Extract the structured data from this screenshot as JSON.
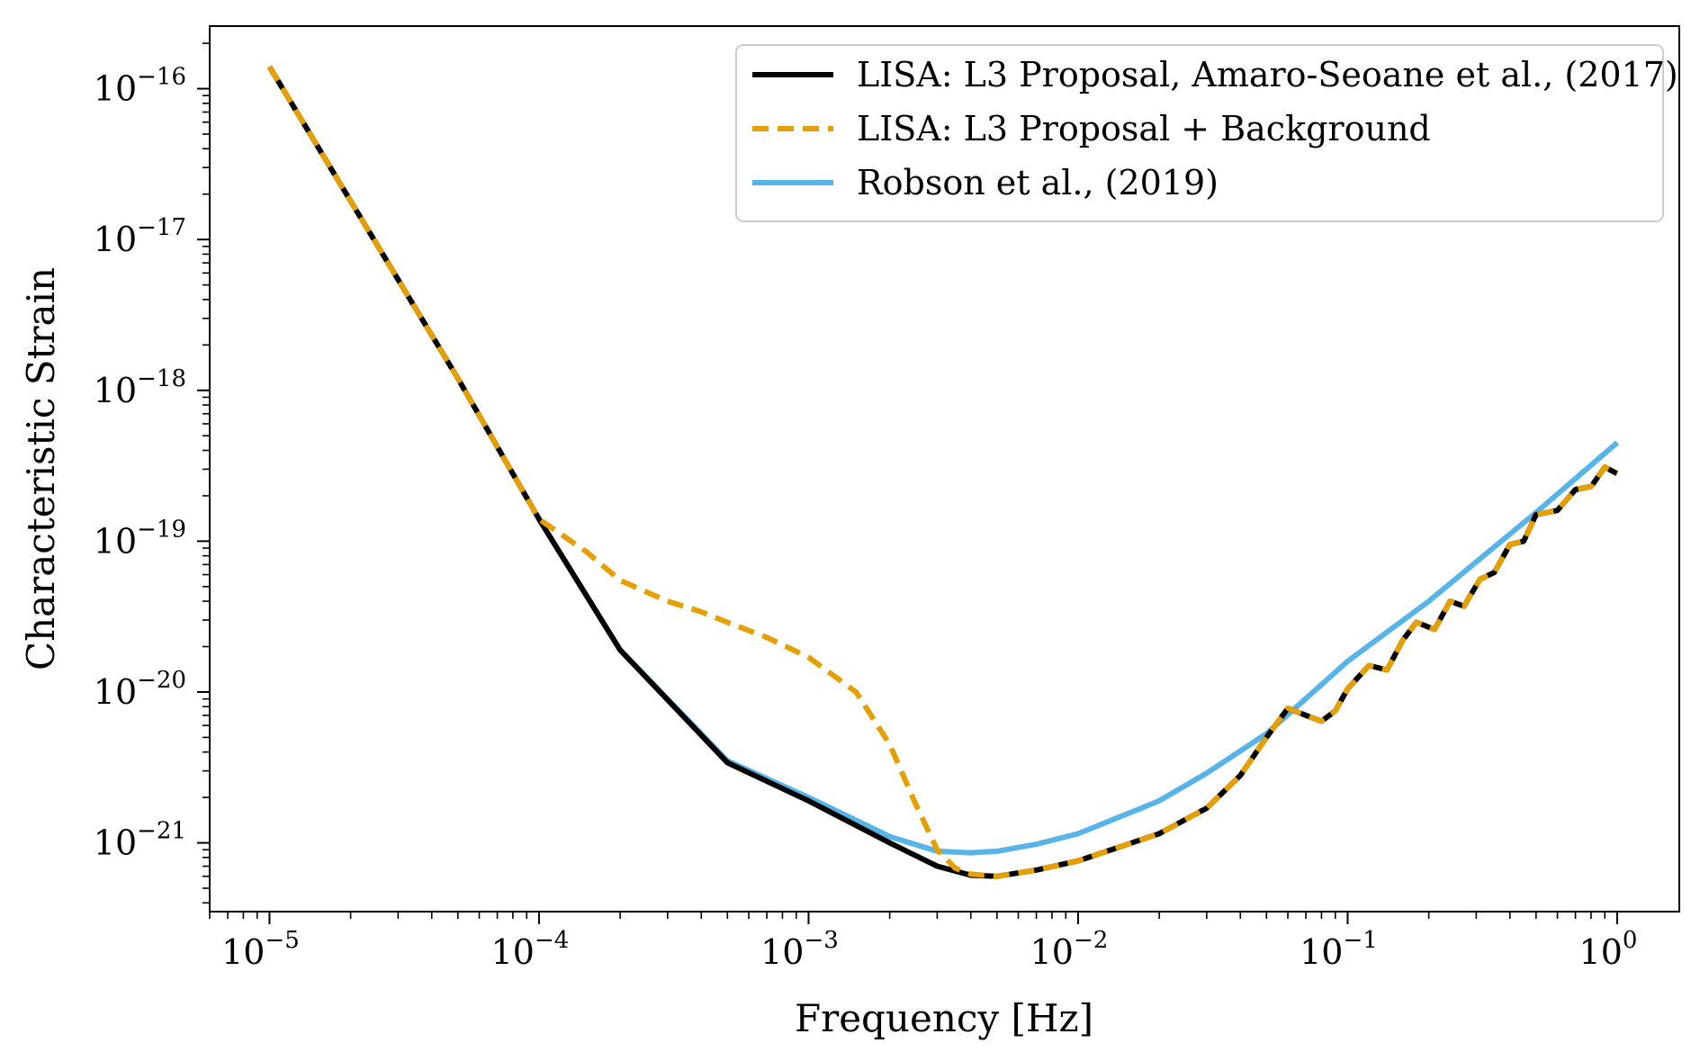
{
  "chart_data": {
    "type": "line",
    "title": "",
    "xlabel": "Frequency [Hz]",
    "ylabel": "Characteristic Strain",
    "xscale": "log",
    "yscale": "log",
    "xlim": [
      6e-06,
      1.7
    ],
    "ylim": [
      3.5e-22,
      2.6e-16
    ],
    "grid": false,
    "legend_position": "top-right",
    "x_ticks": [
      {
        "value": 1e-05,
        "base": "10",
        "exp": "−5"
      },
      {
        "value": 0.0001,
        "base": "10",
        "exp": "−4"
      },
      {
        "value": 0.001,
        "base": "10",
        "exp": "−3"
      },
      {
        "value": 0.01,
        "base": "10",
        "exp": "−2"
      },
      {
        "value": 0.1,
        "base": "10",
        "exp": "−1"
      },
      {
        "value": 1,
        "base": "10",
        "exp": "0"
      }
    ],
    "y_ticks": [
      {
        "value": 1e-16,
        "base": "10",
        "exp": "−16"
      },
      {
        "value": 1e-17,
        "base": "10",
        "exp": "−17"
      },
      {
        "value": 1e-18,
        "base": "10",
        "exp": "−18"
      },
      {
        "value": 1e-19,
        "base": "10",
        "exp": "−19"
      },
      {
        "value": 1e-20,
        "base": "10",
        "exp": "−20"
      },
      {
        "value": 1e-21,
        "base": "10",
        "exp": "−21"
      }
    ],
    "series": [
      {
        "name": "LISA: L3 Proposal, Amaro-Seoane et al., (2017)",
        "color": "#000000",
        "style": "solid",
        "x": [
          1e-05,
          2e-05,
          5e-05,
          0.0001,
          0.0002,
          0.0005,
          0.001,
          0.002,
          0.003,
          0.004,
          0.005,
          0.007,
          0.01,
          0.02,
          0.03,
          0.04,
          0.05,
          0.06,
          0.07,
          0.08,
          0.09,
          0.1,
          0.12,
          0.14,
          0.16,
          0.18,
          0.21,
          0.24,
          0.27,
          0.31,
          0.35,
          0.4,
          0.45,
          0.5,
          0.6,
          0.7,
          0.8,
          0.9,
          1.0
        ],
        "y": [
          1.4e-16,
          1.8e-17,
          1.2e-18,
          1.4e-19,
          1.9e-20,
          3.4e-21,
          1.9e-21,
          1e-21,
          7e-22,
          6.1e-22,
          6e-22,
          6.6e-22,
          7.6e-22,
          1.15e-21,
          1.7e-21,
          2.8e-21,
          5e-21,
          7.8e-21,
          7e-21,
          6.4e-21,
          7.5e-21,
          1.05e-20,
          1.5e-20,
          1.4e-20,
          2.2e-20,
          2.9e-20,
          2.6e-20,
          4e-20,
          3.7e-20,
          5.6e-20,
          6.2e-20,
          9.5e-20,
          1e-19,
          1.5e-19,
          1.6e-19,
          2.2e-19,
          2.3e-19,
          3.1e-19,
          2.8e-19
        ]
      },
      {
        "name": "LISA: L3 Proposal + Background",
        "color": "#e69f00",
        "style": "dashed",
        "x": [
          1e-05,
          2e-05,
          5e-05,
          0.0001,
          0.00015,
          0.0002,
          0.0003,
          0.0004,
          0.0005,
          0.0007,
          0.001,
          0.0015,
          0.002,
          0.0025,
          0.003,
          0.0035,
          0.004,
          0.005,
          0.007,
          0.01,
          0.02,
          0.03,
          0.04,
          0.05,
          0.06,
          0.07,
          0.08,
          0.09,
          0.1,
          0.12,
          0.14,
          0.16,
          0.18,
          0.21,
          0.24,
          0.27,
          0.31,
          0.35,
          0.4,
          0.45,
          0.5,
          0.6,
          0.7,
          0.8,
          0.9,
          1.0
        ],
        "y": [
          1.4e-16,
          1.8e-17,
          1.2e-18,
          1.4e-19,
          8.5e-20,
          5.5e-20,
          4e-20,
          3.4e-20,
          2.9e-20,
          2.3e-20,
          1.7e-20,
          1e-20,
          4.5e-21,
          1.8e-21,
          9e-22,
          6.8e-22,
          6.2e-22,
          6e-22,
          6.6e-22,
          7.6e-22,
          1.15e-21,
          1.7e-21,
          2.8e-21,
          5e-21,
          7.8e-21,
          7e-21,
          6.4e-21,
          7.5e-21,
          1.05e-20,
          1.5e-20,
          1.4e-20,
          2.2e-20,
          2.9e-20,
          2.6e-20,
          4e-20,
          3.7e-20,
          5.6e-20,
          6.2e-20,
          9.5e-20,
          1e-19,
          1.5e-19,
          1.6e-19,
          2.2e-19,
          2.3e-19,
          3.1e-19,
          2.8e-19
        ]
      },
      {
        "name": "Robson et al., (2019)",
        "color": "#56b4e9",
        "style": "solid",
        "x": [
          0.0001,
          0.0002,
          0.0005,
          0.001,
          0.002,
          0.003,
          0.004,
          0.005,
          0.007,
          0.01,
          0.02,
          0.03,
          0.05,
          0.1,
          0.2,
          0.5,
          1.0
        ],
        "y": [
          1.4e-19,
          1.9e-20,
          3.5e-21,
          2e-21,
          1.1e-21,
          8.8e-22,
          8.6e-22,
          8.8e-22,
          9.8e-22,
          1.15e-21,
          1.9e-21,
          2.9e-21,
          5.3e-21,
          1.6e-20,
          4e-20,
          1.55e-19,
          4.5e-19
        ]
      }
    ]
  }
}
